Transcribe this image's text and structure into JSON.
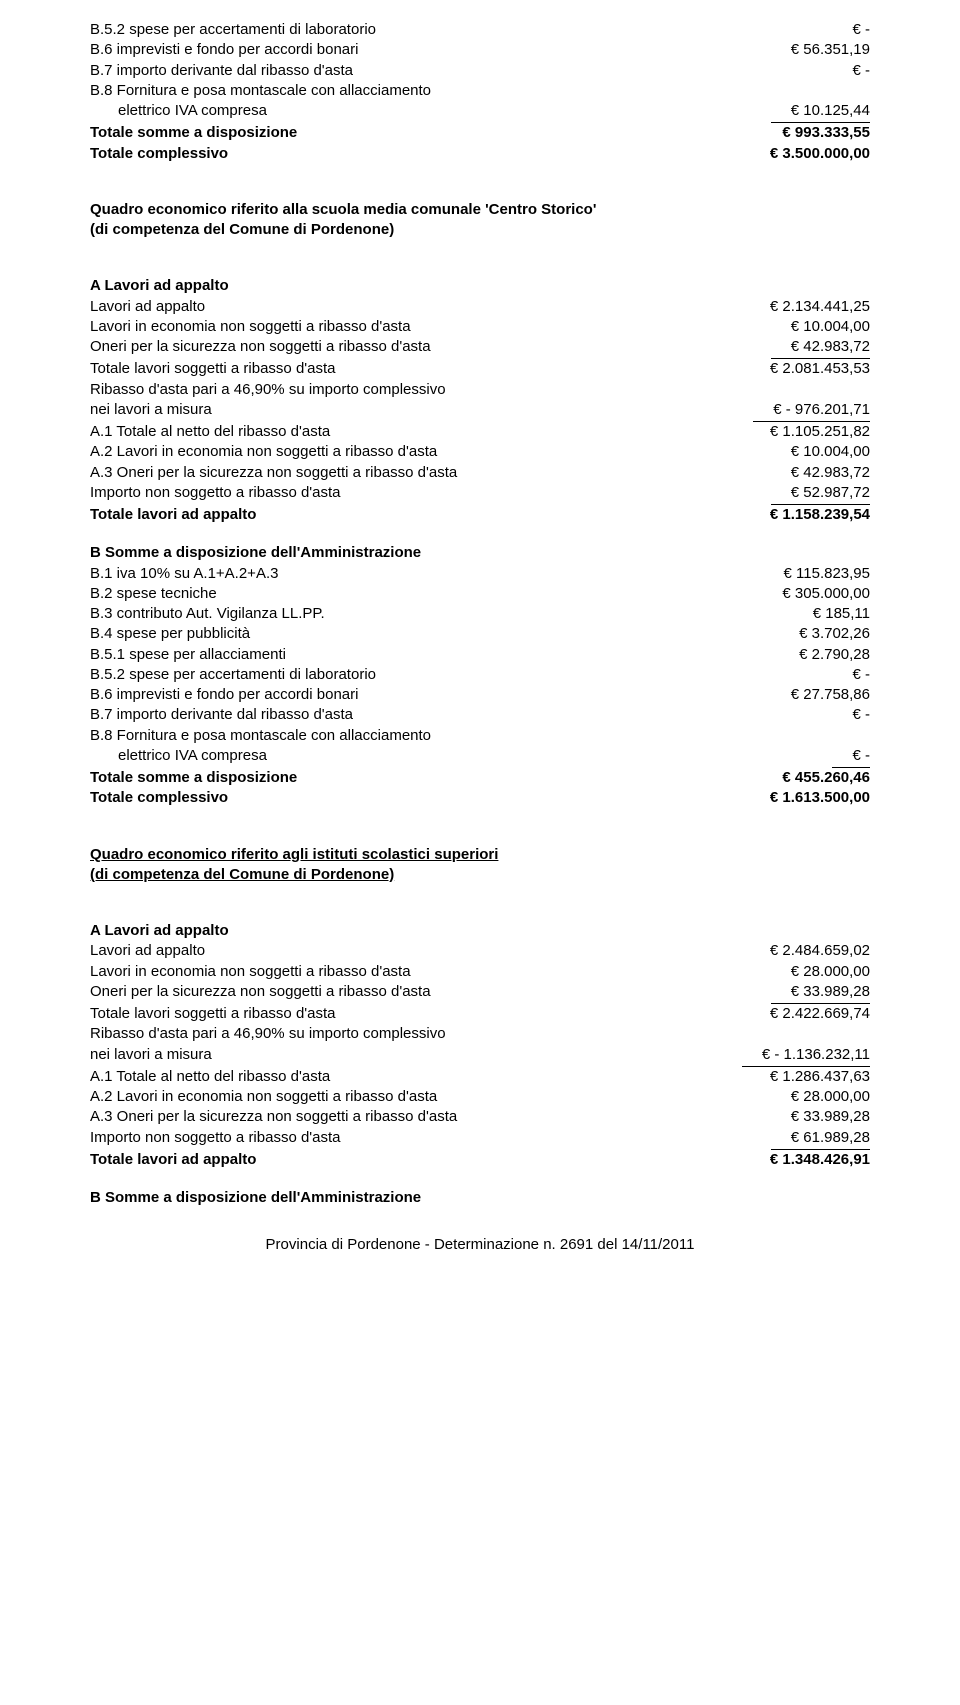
{
  "top": {
    "b52": {
      "label": "B.5.2 spese per accertamenti di laboratorio",
      "value": "€                               -"
    },
    "b6": {
      "label": "B.6 imprevisti e fondo per accordi bonari",
      "value": "€                 56.351,19"
    },
    "b7": {
      "label": "B.7 importo derivante dal ribasso d'asta",
      "value": "€                               -"
    },
    "b8a": {
      "label": "B.8 Fornitura e posa montascale con allacciamento"
    },
    "b8b": {
      "label": "elettrico IVA compresa",
      "value": "€                 10.125,44"
    },
    "tsd": {
      "label": "Totale somme a disposizione",
      "value": "€               993.333,55"
    },
    "tc": {
      "label": "Totale complessivo",
      "value": "€            3.500.000,00"
    }
  },
  "quadro1": {
    "title": "Quadro economico riferito alla scuola media comunale 'Centro Storico'",
    "subtitle": "(di competenza del Comune di Pordenone)",
    "a_title": "A Lavori ad appalto",
    "a1": {
      "label": "Lavori ad appalto",
      "value": "€            2.134.441,25"
    },
    "a2": {
      "label": "Lavori in economia non soggetti a ribasso d'asta",
      "value": "€                 10.004,00"
    },
    "a3": {
      "label": "Oneri per la sicurezza non soggetti a ribasso d'asta",
      "value": "€                 42.983,72"
    },
    "a4": {
      "label": "Totale lavori soggetti a ribasso d'asta",
      "value": "€            2.081.453,53"
    },
    "a5a": {
      "label": "Ribasso d'asta pari a 46,90% su importo complessivo"
    },
    "a5b": {
      "label": "nei lavori a misura",
      "value": "€            -  976.201,71"
    },
    "a6": {
      "label": "A.1 Totale al netto del ribasso d'asta",
      "value": "€            1.105.251,82"
    },
    "a7": {
      "label": "A.2 Lavori in economia non soggetti a ribasso d'asta",
      "value": "€                 10.004,00"
    },
    "a8": {
      "label": "A.3 Oneri per la sicurezza non soggetti a ribasso d'asta",
      "value": "€                 42.983,72"
    },
    "a9": {
      "label": "Importo non soggetto a ribasso d'asta",
      "value": "€                 52.987,72"
    },
    "a10": {
      "label": "Totale lavori ad appalto",
      "value": "€            1.158.239,54"
    },
    "b_title": "B Somme a disposizione dell'Amministrazione",
    "b1": {
      "label": "B.1 iva 10% su A.1+A.2+A.3",
      "value": "€               115.823,95"
    },
    "b2": {
      "label": "B.2 spese tecniche",
      "value": "€               305.000,00"
    },
    "b3": {
      "label": "B.3 contributo Aut. Vigilanza LL.PP.",
      "value": "€                      185,11"
    },
    "b4": {
      "label": "B.4 spese per pubblicità",
      "value": "€                   3.702,26"
    },
    "b51": {
      "label": "B.5.1 spese per allacciamenti",
      "value": "€                   2.790,28"
    },
    "b52": {
      "label": "B.5.2 spese per accertamenti di laboratorio",
      "value": "€                               -"
    },
    "b6": {
      "label": "B.6 imprevisti e fondo per accordi bonari",
      "value": "€                 27.758,86"
    },
    "b7": {
      "label": "B.7 importo derivante dal ribasso d'asta",
      "value": "€                               -"
    },
    "b8a": {
      "label": "B.8 Fornitura e posa montascale con allacciamento"
    },
    "b8b": {
      "label": "elettrico IVA compresa",
      "value": "€                               -"
    },
    "tsd": {
      "label": "Totale somme a disposizione",
      "value": "€               455.260,46"
    },
    "tc": {
      "label": "Totale complessivo",
      "value": "€            1.613.500,00"
    }
  },
  "quadro2": {
    "title": "Quadro economico riferito agli istituti scolastici superiori",
    "subtitle": "(di competenza del Comune di Pordenone)",
    "a_title": "A Lavori ad appalto",
    "a1": {
      "label": "Lavori ad appalto",
      "value": "€            2.484.659,02"
    },
    "a2": {
      "label": "Lavori in economia non soggetti a ribasso d'asta",
      "value": "€                 28.000,00"
    },
    "a3": {
      "label": "Oneri per la sicurezza non soggetti a ribasso d'asta",
      "value": "€                 33.989,28"
    },
    "a4": {
      "label": "Totale lavori soggetti a ribasso d'asta",
      "value": "€            2.422.669,74"
    },
    "a5a": {
      "label": "Ribasso d'asta pari a 46,90% su importo complessivo"
    },
    "a5b": {
      "label": "nei lavori a misura",
      "value": "€         -  1.136.232,11"
    },
    "a6": {
      "label": "A.1 Totale al netto del ribasso d'asta",
      "value": "€            1.286.437,63"
    },
    "a7": {
      "label": "A.2 Lavori in economia non soggetti a ribasso d'asta",
      "value": "€                 28.000,00"
    },
    "a8": {
      "label": "A.3 Oneri per la sicurezza non soggetti a ribasso d'asta",
      "value": "€                 33.989,28"
    },
    "a9": {
      "label": "Importo non soggetto a ribasso d'asta",
      "value": "€                 61.989,28"
    },
    "a10": {
      "label": "Totale lavori ad appalto",
      "value": "€            1.348.426,91"
    },
    "b_title": "B Somme a disposizione dell'Amministrazione"
  },
  "footer": "Provincia di Pordenone - Determinazione n. 2691 del 14/11/2011"
}
